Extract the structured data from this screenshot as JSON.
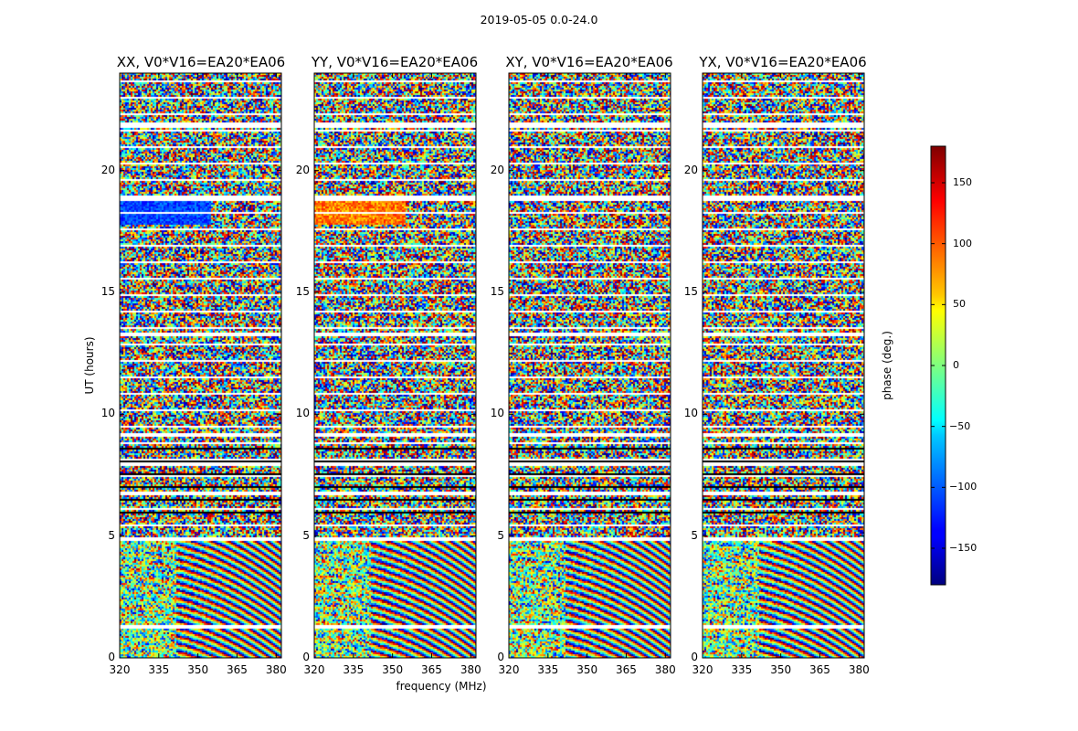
{
  "suptitle": "2019-05-05 0.0-24.0",
  "chart_data": {
    "type": "heatmap",
    "title": "2019-05-05 0.0-24.0",
    "xlabel": "frequency (MHz)",
    "ylabel": "UT (hours)",
    "xlim": [
      320,
      382
    ],
    "ylim": [
      0,
      24
    ],
    "x_ticks": [
      "320",
      "335",
      "350",
      "365",
      "380"
    ],
    "x_tick_values": [
      320,
      335,
      350,
      365,
      380
    ],
    "y_ticks": [
      "0",
      "5",
      "10",
      "15",
      "20"
    ],
    "y_tick_values": [
      0,
      5,
      10,
      15,
      20
    ],
    "colormap": "jet",
    "panels": [
      {
        "title": "XX, V0*V16=EA20*EA06",
        "polarization": "XX"
      },
      {
        "title": "YY, V0*V16=EA20*EA06",
        "polarization": "YY"
      },
      {
        "title": "XY, V0*V16=EA20*EA06",
        "polarization": "XY"
      },
      {
        "title": "YX, V0*V16=EA20*EA06",
        "polarization": "YX"
      }
    ],
    "colorbar": {
      "label": "phase (deg.)",
      "range": [
        -180,
        180
      ],
      "ticks": [
        "150",
        "100",
        "50",
        "0",
        "−50",
        "−100",
        "−150"
      ],
      "tick_values": [
        150,
        100,
        50,
        0,
        -50,
        -100,
        -150
      ]
    },
    "blank_gaps_hours": [
      1.3,
      4.9,
      6.8,
      8.0,
      9.2,
      13.3,
      18.9,
      21.9
    ],
    "note": "Phase values are pseudo-random noise above ~5 UT; below ~5 UT phase wraps with frequency producing diagonal fringes, strongest at higher frequencies."
  }
}
